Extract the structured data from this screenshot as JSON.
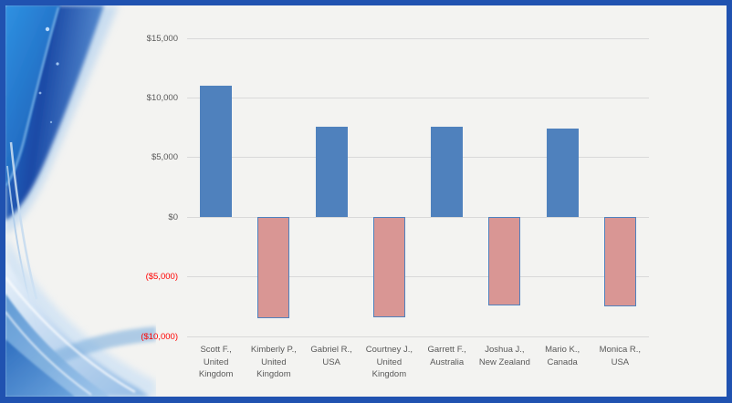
{
  "slide": {
    "type": "presentation-slide",
    "background_color": "#f3f3f1",
    "frame_color": "#2052b0",
    "decoration": "blue-wave-left-panel"
  },
  "chart_data": {
    "type": "bar",
    "title": "",
    "xlabel": "",
    "ylabel": "",
    "categories": [
      "Scott F.,\nUnited\nKingdom",
      "Kimberly P.,\nUnited\nKingdom",
      "Gabriel R.,\nUSA",
      "Courtney J.,\nUnited\nKingdom",
      "Garrett F.,\nAustralia",
      "Joshua J.,\nNew Zealand",
      "Mario K.,\nCanada",
      "Monica R.,\nUSA"
    ],
    "values": [
      11000,
      -8500,
      7550,
      -8400,
      7550,
      -7400,
      7450,
      -7450
    ],
    "ylim": [
      -10000,
      15000
    ],
    "y_ticks": [
      15000,
      10000,
      5000,
      0,
      -5000,
      -10000
    ],
    "y_tick_labels": [
      "$15,000",
      "$10,000",
      "$5,000",
      "$0",
      "($5,000)",
      "($10,000)"
    ],
    "grid": true,
    "legend": false,
    "colors": {
      "positive_bar": "#4f81bd",
      "negative_bar_fill": "#d99694",
      "negative_bar_border": "#4f81bd",
      "gridline": "#d9d9d9",
      "tick_label": "#595959",
      "tick_label_negative": "#ff0000",
      "category_label": "#595959"
    }
  }
}
